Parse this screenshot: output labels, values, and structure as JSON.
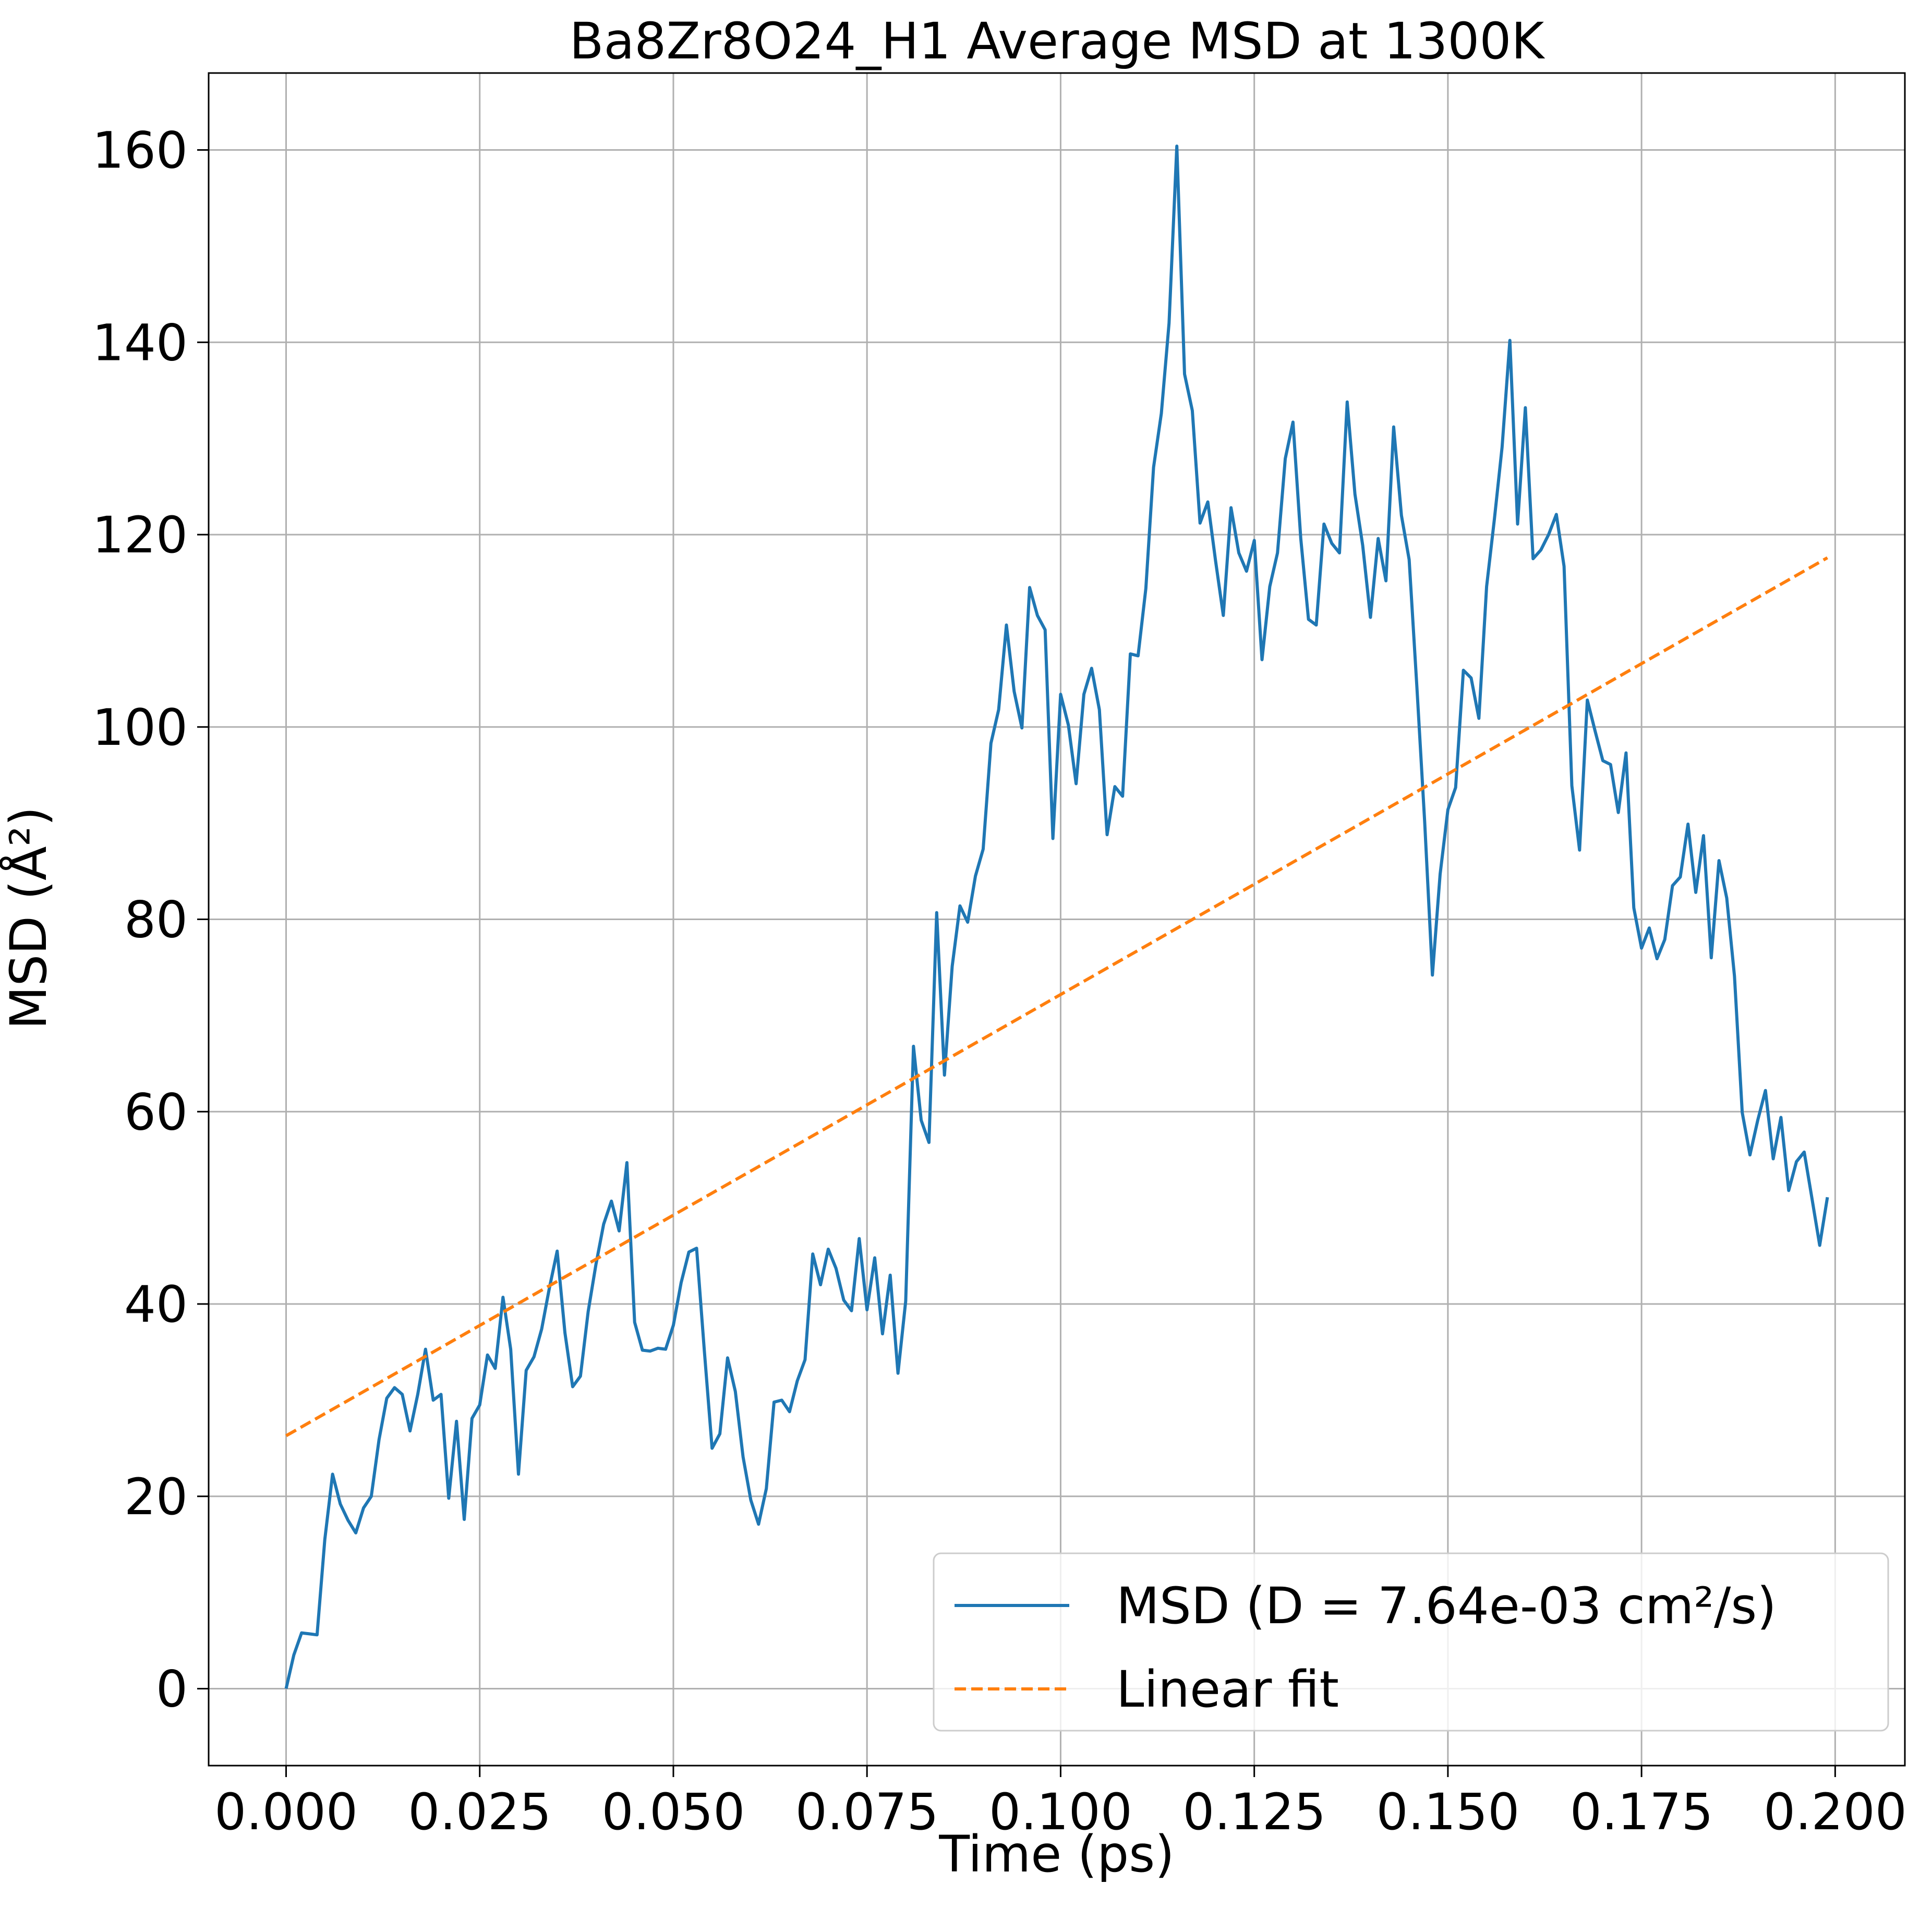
{
  "chart_data": {
    "type": "line",
    "title": "Ba8Zr8O24_H1 Average MSD at 1300K",
    "xlabel": "Time (ps)",
    "ylabel": "MSD (Å²)",
    "xlim": [
      -0.01,
      0.209
    ],
    "ylim": [
      -8,
      168
    ],
    "xticks": [
      0.0,
      0.025,
      0.05,
      0.075,
      0.1,
      0.125,
      0.15,
      0.175,
      0.2
    ],
    "xtick_labels": [
      "0.000",
      "0.025",
      "0.050",
      "0.075",
      "0.100",
      "0.125",
      "0.150",
      "0.175",
      "0.200"
    ],
    "yticks": [
      0,
      20,
      40,
      60,
      80,
      100,
      120,
      140,
      160
    ],
    "ytick_labels": [
      "0",
      "20",
      "40",
      "60",
      "80",
      "100",
      "120",
      "140",
      "160"
    ],
    "grid": true,
    "legend_position": "bottom-right",
    "series": [
      {
        "name": "MSD (D = 7.64e-03 cm²/s)",
        "color": "#1f77b4",
        "style": "solid",
        "x": [
          0.0,
          0.001,
          0.002,
          0.003,
          0.004,
          0.005,
          0.006,
          0.007,
          0.008,
          0.009,
          0.01,
          0.011,
          0.012,
          0.013,
          0.014,
          0.015,
          0.016,
          0.017,
          0.018,
          0.019,
          0.02,
          0.021,
          0.022,
          0.023,
          0.024,
          0.025,
          0.026,
          0.027,
          0.028,
          0.029,
          0.03,
          0.031,
          0.032,
          0.033,
          0.034,
          0.035,
          0.036,
          0.037,
          0.038,
          0.039,
          0.04,
          0.041,
          0.042,
          0.043,
          0.044,
          0.045,
          0.046,
          0.047,
          0.048,
          0.049,
          0.05,
          0.051,
          0.052,
          0.053,
          0.054,
          0.055,
          0.056,
          0.057,
          0.058,
          0.059,
          0.06,
          0.061,
          0.062,
          0.063,
          0.064,
          0.065,
          0.066,
          0.067,
          0.068,
          0.069,
          0.07,
          0.071,
          0.072,
          0.073,
          0.074,
          0.075,
          0.076,
          0.077,
          0.078,
          0.079,
          0.08,
          0.081,
          0.082,
          0.083,
          0.084,
          0.085,
          0.086,
          0.087,
          0.088,
          0.089,
          0.09,
          0.091,
          0.092,
          0.093,
          0.094,
          0.095,
          0.096,
          0.097,
          0.098,
          0.099,
          0.1,
          0.101,
          0.102,
          0.103,
          0.104,
          0.105,
          0.106,
          0.107,
          0.108,
          0.109,
          0.11,
          0.111,
          0.112,
          0.113,
          0.114,
          0.115,
          0.116,
          0.117,
          0.118,
          0.119,
          0.12,
          0.121,
          0.122,
          0.123,
          0.124,
          0.125,
          0.126,
          0.127,
          0.128,
          0.129,
          0.13,
          0.131,
          0.132,
          0.133,
          0.134,
          0.135,
          0.136,
          0.137,
          0.138,
          0.139,
          0.14,
          0.141,
          0.142,
          0.143,
          0.144,
          0.145,
          0.146,
          0.147,
          0.148,
          0.149,
          0.15,
          0.151,
          0.152,
          0.153,
          0.154,
          0.155,
          0.156,
          0.157,
          0.158,
          0.159,
          0.16,
          0.161,
          0.162,
          0.163,
          0.164,
          0.165,
          0.166,
          0.167,
          0.168,
          0.169,
          0.17,
          0.171,
          0.172,
          0.173,
          0.174,
          0.175,
          0.176,
          0.177,
          0.178,
          0.179,
          0.18,
          0.181,
          0.182,
          0.183,
          0.184,
          0.185,
          0.186,
          0.187,
          0.188,
          0.189,
          0.19,
          0.191,
          0.192,
          0.193,
          0.194,
          0.195,
          0.196,
          0.197,
          0.198,
          0.199
        ],
        "y": [
          0.0,
          3.5,
          5.8,
          5.7,
          5.6,
          15.5,
          22.3,
          19.2,
          17.5,
          16.2,
          18.8,
          20.0,
          25.9,
          30.2,
          31.3,
          30.6,
          26.8,
          30.6,
          35.3,
          30.0,
          30.6,
          19.8,
          27.8,
          17.6,
          28.1,
          29.5,
          34.7,
          33.3,
          40.7,
          35.3,
          22.3,
          33.1,
          34.5,
          37.4,
          41.7,
          45.5,
          37.0,
          31.4,
          32.5,
          39.2,
          44.1,
          48.3,
          50.7,
          47.6,
          54.7,
          38.1,
          35.2,
          35.1,
          35.4,
          35.3,
          37.8,
          42.2,
          45.4,
          45.8,
          35.1,
          25.0,
          26.5,
          34.4,
          30.9,
          24.1,
          19.6,
          17.1,
          20.8,
          29.8,
          30.0,
          28.8,
          32.0,
          34.2,
          45.2,
          42.0,
          45.7,
          43.7,
          40.4,
          39.3,
          46.8,
          39.4,
          44.8,
          36.9,
          43.0,
          32.8,
          40.3,
          66.8,
          59.1,
          56.8,
          80.7,
          63.8,
          75.1,
          81.4,
          79.7,
          84.5,
          87.3,
          98.3,
          101.8,
          110.6,
          103.7,
          99.9,
          114.5,
          111.6,
          110.1,
          88.4,
          103.4,
          100.2,
          94.1,
          103.4,
          106.1,
          101.8,
          88.8,
          93.8,
          92.8,
          107.6,
          107.4,
          114.4,
          127.0,
          132.6,
          142.0,
          160.4,
          136.7,
          132.9,
          121.2,
          123.4,
          117.3,
          111.6,
          122.8,
          118.1,
          116.2,
          119.4,
          107.0,
          114.6,
          118.1,
          127.9,
          131.7,
          119.6,
          111.2,
          110.6,
          121.1,
          119.1,
          118.1,
          133.8,
          124.2,
          118.9,
          111.4,
          119.6,
          115.2,
          131.2,
          122.0,
          117.4,
          104.1,
          90.2,
          74.2,
          84.7,
          91.4,
          93.7,
          105.9,
          105.1,
          100.9,
          114.6,
          121.6,
          129.1,
          140.2,
          121.1,
          133.2,
          117.5,
          118.4,
          120.0,
          122.1,
          116.7,
          93.9,
          87.2,
          102.8,
          99.6,
          96.5,
          96.1,
          91.1,
          97.3,
          81.2,
          77.0,
          79.1,
          75.9,
          77.9,
          83.5,
          84.4,
          89.9,
          82.8,
          88.7,
          76.0,
          86.1,
          82.2,
          74.1,
          59.9,
          55.5,
          59.1,
          62.2,
          55.1,
          59.4,
          51.8,
          54.8,
          55.8,
          51.0,
          46.1,
          51.1
        ]
      },
      {
        "name": "Linear fit",
        "color": "#ff7f0e",
        "style": "dashed",
        "x": [
          0.0,
          0.199
        ],
        "y": [
          26.3,
          117.6
        ]
      }
    ]
  }
}
